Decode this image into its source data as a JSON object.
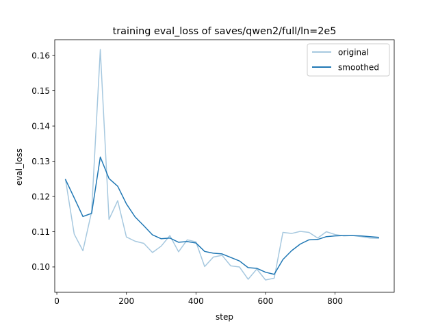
{
  "chart_data": {
    "type": "line",
    "title": "training eval_loss of saves/qwen2/full/ln=2e5",
    "xlabel": "step",
    "ylabel": "eval_loss",
    "xlim": [
      -6,
      970
    ],
    "ylim": [
      0.0928,
      0.1645
    ],
    "x_ticks": [
      0,
      200,
      400,
      600,
      800
    ],
    "x_tick_labels": [
      "0",
      "200",
      "400",
      "600",
      "800"
    ],
    "y_ticks": [
      0.1,
      0.11,
      0.12,
      0.13,
      0.14,
      0.15,
      0.16
    ],
    "y_tick_labels": [
      "0.10",
      "0.11",
      "0.12",
      "0.13",
      "0.14",
      "0.15",
      "0.16"
    ],
    "grid": false,
    "legend_position": "upper right",
    "x": [
      25,
      50,
      75,
      100,
      125,
      150,
      175,
      200,
      225,
      250,
      275,
      300,
      325,
      350,
      375,
      400,
      425,
      450,
      475,
      500,
      525,
      550,
      575,
      600,
      625,
      650,
      675,
      700,
      725,
      750,
      775,
      800,
      825,
      850,
      875,
      900,
      925
    ],
    "series": [
      {
        "name": "original",
        "color": "#a6c8df",
        "values": [
          0.1248,
          0.1093,
          0.1046,
          0.1157,
          0.1617,
          0.1135,
          0.1188,
          0.1085,
          0.1073,
          0.1067,
          0.1041,
          0.1059,
          0.1089,
          0.1043,
          0.1077,
          0.1071,
          0.1001,
          0.1028,
          0.1033,
          0.1003,
          0.1,
          0.0965,
          0.0994,
          0.0963,
          0.0968,
          0.1098,
          0.1095,
          0.1101,
          0.1098,
          0.1082,
          0.11,
          0.1092,
          0.1088,
          0.1089,
          0.1086,
          0.1082,
          0.1081
        ]
      },
      {
        "name": "smoothed",
        "color": "#1f77b4",
        "values": [
          0.1248,
          0.1196,
          0.1143,
          0.1152,
          0.1312,
          0.1251,
          0.1229,
          0.1179,
          0.1142,
          0.1117,
          0.1091,
          0.108,
          0.1082,
          0.107,
          0.1072,
          0.1068,
          0.1044,
          0.1039,
          0.1037,
          0.1027,
          0.1017,
          0.0998,
          0.0996,
          0.0985,
          0.0979,
          0.1021,
          0.1046,
          0.1065,
          0.1077,
          0.1078,
          0.1086,
          0.1088,
          0.1089,
          0.1089,
          0.1088,
          0.1086,
          0.1084
        ]
      }
    ]
  }
}
